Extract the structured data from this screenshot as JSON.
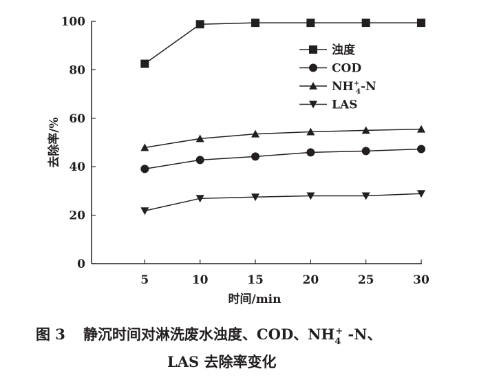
{
  "chart_data": {
    "type": "line",
    "xlabel": "时间/min",
    "ylabel": "去除率/%",
    "xlim": [
      0,
      30
    ],
    "ylim": [
      0,
      100
    ],
    "x_ticks": [
      5,
      10,
      15,
      20,
      25,
      30
    ],
    "y_ticks": [
      0,
      20,
      40,
      60,
      80,
      100
    ],
    "x": [
      5,
      10,
      15,
      20,
      25,
      30
    ],
    "grid": false,
    "legend_placement": "top-right",
    "series": [
      {
        "name": "浊度",
        "marker": "square",
        "values": [
          82.5,
          98.8,
          99.4,
          99.4,
          99.4,
          99.4
        ]
      },
      {
        "name": "COD",
        "marker": "circle",
        "values": [
          39.1,
          42.8,
          44.2,
          45.9,
          46.5,
          47.3
        ]
      },
      {
        "name": "NH4+-N",
        "name_main": "NH",
        "name_sup": "+",
        "name_sub": "4",
        "name_tail": "-N",
        "marker": "triangle-up",
        "values": [
          47.9,
          51.6,
          53.5,
          54.4,
          55.0,
          55.5
        ]
      },
      {
        "name": "LAS",
        "marker": "triangle-down",
        "values": [
          21.8,
          26.9,
          27.5,
          28.0,
          28.0,
          28.9
        ]
      }
    ],
    "color": "#231f20"
  },
  "caption": {
    "label": "图 3",
    "line1": "静沉时间对淋洗废水浊度、COD、NH",
    "sub": "4",
    "sup": "+",
    "line1_tail": " -N、",
    "line2": "LAS 去除率变化"
  }
}
